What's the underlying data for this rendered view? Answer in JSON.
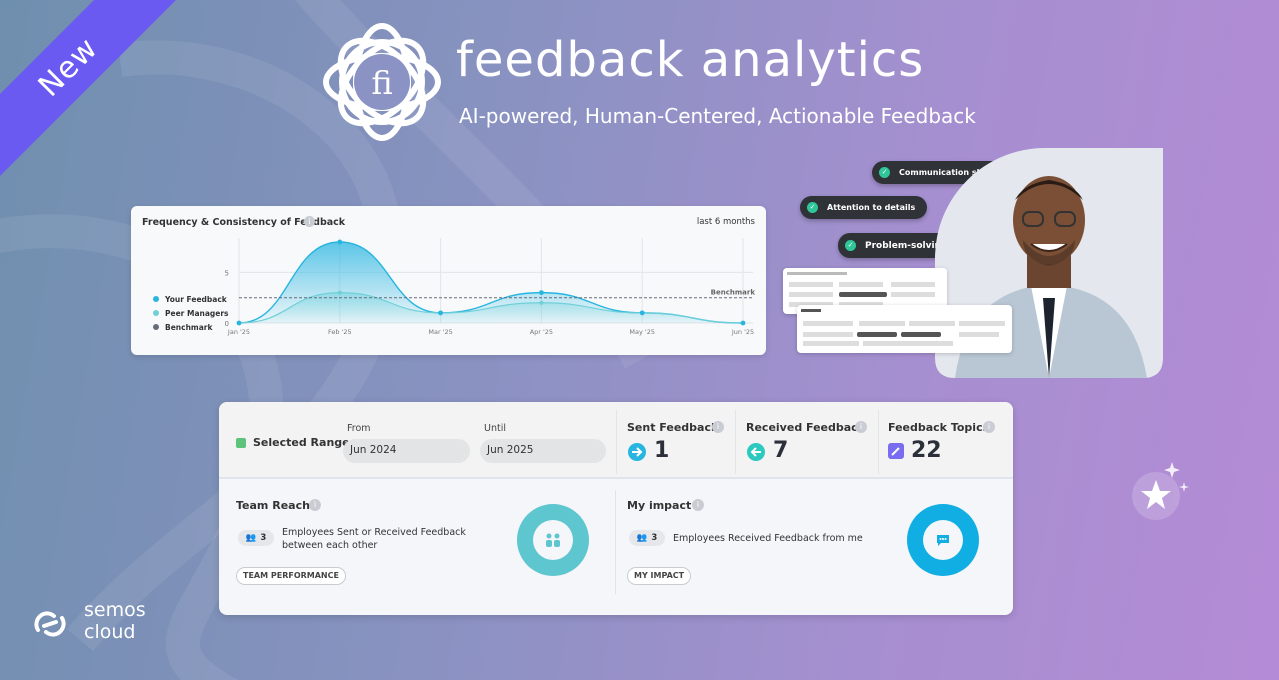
{
  "badge": "New",
  "brand": {
    "name": "feedback analytics",
    "tagline": "AI-powered, Human-Centered, Actionable Feedback"
  },
  "chart": {
    "title": "Frequency & Consistency of Feedback",
    "period": "last 6 months",
    "legend": [
      "Your Feedback",
      "Peer Managers",
      "Benchmark"
    ],
    "benchmark_label": "Benchmark"
  },
  "chart_data": {
    "type": "area",
    "title": "Frequency & Consistency of Feedback",
    "categories": [
      "Jan '25",
      "Feb '25",
      "Mar '25",
      "Apr '25",
      "May '25",
      "Jun '25"
    ],
    "y_ticks": [
      "0",
      "5"
    ],
    "ylim": [
      0,
      8
    ],
    "series": [
      {
        "name": "Your Feedback",
        "values": [
          0,
          8,
          1,
          3,
          1,
          0
        ],
        "color": "#28b5e0"
      },
      {
        "name": "Peer Managers",
        "values": [
          0,
          3,
          1,
          2,
          1,
          0
        ],
        "color": "#6fd0d8"
      },
      {
        "name": "Benchmark",
        "values": [
          2.5,
          2.5,
          2.5,
          2.5,
          2.5,
          2.5
        ],
        "color": "#666c78"
      }
    ],
    "legend_position": "left"
  },
  "skills": [
    "Communication skills",
    "Attention to details",
    "Problem-solving"
  ],
  "dashboard": {
    "selected_range": "Selected Range",
    "from_label": "From",
    "from_value": "Jun 2024",
    "until_label": "Until",
    "until_value": "Jun 2025",
    "stats": [
      {
        "label": "Sent Feedback",
        "value": "1"
      },
      {
        "label": "Received Feedback",
        "value": "7"
      },
      {
        "label": "Feedback Topics",
        "value": "22"
      }
    ],
    "team_reach": {
      "title": "Team Reach",
      "count": "3",
      "description_line1": "Employees Sent or Received Feedback",
      "description_line2": "between each other",
      "button": "TEAM PERFORMANCE"
    },
    "my_impact": {
      "title": "My impact",
      "count": "3",
      "description": "Employees Received Feedback from me",
      "button": "MY IMPACT"
    }
  },
  "company": {
    "line1": "semos",
    "line2": "cloud"
  },
  "colors": {
    "ribbon": "#6a5af2",
    "accent_blue": "#28b5e0",
    "teal": "#5ec6cf",
    "purple": "#7a6cf0"
  }
}
